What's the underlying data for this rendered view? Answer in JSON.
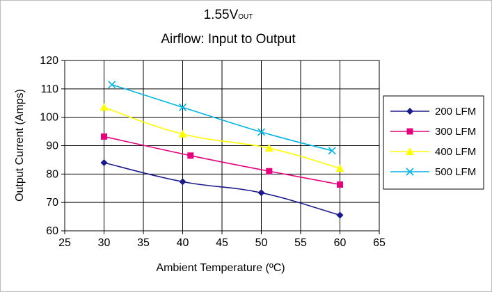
{
  "chart_data": {
    "type": "line",
    "title": "1.55V",
    "title_subscript": "OUT",
    "subtitle": "Airflow: Input to Output",
    "xlabel": "Ambient Temperature (ºC)",
    "ylabel": "Output Current (Amps)",
    "xlim": [
      25,
      65
    ],
    "ylim": [
      60,
      120
    ],
    "xticks": [
      25,
      30,
      35,
      40,
      45,
      50,
      55,
      60,
      65
    ],
    "yticks": [
      60,
      70,
      80,
      90,
      100,
      110,
      120
    ],
    "grid": true,
    "legend_position": "right",
    "series": [
      {
        "name": "200 LFM",
        "color": "#1a1a8c",
        "marker": "diamond",
        "points": [
          [
            30,
            84
          ],
          [
            40,
            77.3
          ],
          [
            50,
            73.4
          ],
          [
            60,
            65.5
          ]
        ]
      },
      {
        "name": "300 LFM",
        "color": "#e6007e",
        "marker": "square",
        "points": [
          [
            30,
            93.2
          ],
          [
            41,
            86.5
          ],
          [
            51,
            81
          ],
          [
            60,
            76.3
          ]
        ]
      },
      {
        "name": "400 LFM",
        "color": "#ffff00",
        "marker": "triangle",
        "points": [
          [
            30,
            103.5
          ],
          [
            40,
            94.1
          ],
          [
            51,
            89.1
          ],
          [
            60,
            82
          ]
        ]
      },
      {
        "name": "500 LFM",
        "color": "#00b3e6",
        "marker": "x",
        "points": [
          [
            31,
            111.5
          ],
          [
            40,
            103.5
          ],
          [
            50,
            94.8
          ],
          [
            59,
            88.2
          ]
        ]
      }
    ]
  }
}
